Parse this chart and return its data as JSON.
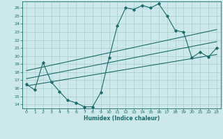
{
  "title": "",
  "xlabel": "Humidex (Indice chaleur)",
  "bg_color": "#cce8ea",
  "grid_color": "#aacccc",
  "line_color": "#1a6b6b",
  "xlim": [
    -0.5,
    23.5
  ],
  "ylim": [
    13.5,
    26.8
  ],
  "xticks": [
    0,
    1,
    2,
    3,
    4,
    5,
    6,
    7,
    8,
    9,
    10,
    11,
    12,
    13,
    14,
    15,
    16,
    17,
    18,
    19,
    20,
    21,
    22,
    23
  ],
  "yticks": [
    14,
    15,
    16,
    17,
    18,
    19,
    20,
    21,
    22,
    23,
    24,
    25,
    26
  ],
  "main_y": [
    16.5,
    15.8,
    19.2,
    16.8,
    15.6,
    14.5,
    14.2,
    13.7,
    13.7,
    15.5,
    19.8,
    23.8,
    26.0,
    25.8,
    26.3,
    26.0,
    26.5,
    25.0,
    23.2,
    23.0,
    19.8,
    20.5,
    19.9,
    21.0
  ],
  "trend_lines": [
    {
      "x0": 0,
      "y0": 16.3,
      "x1": 23,
      "y1": 20.2
    },
    {
      "x0": 0,
      "y0": 17.2,
      "x1": 23,
      "y1": 21.8
    },
    {
      "x0": 0,
      "y0": 18.2,
      "x1": 23,
      "y1": 23.3
    }
  ]
}
